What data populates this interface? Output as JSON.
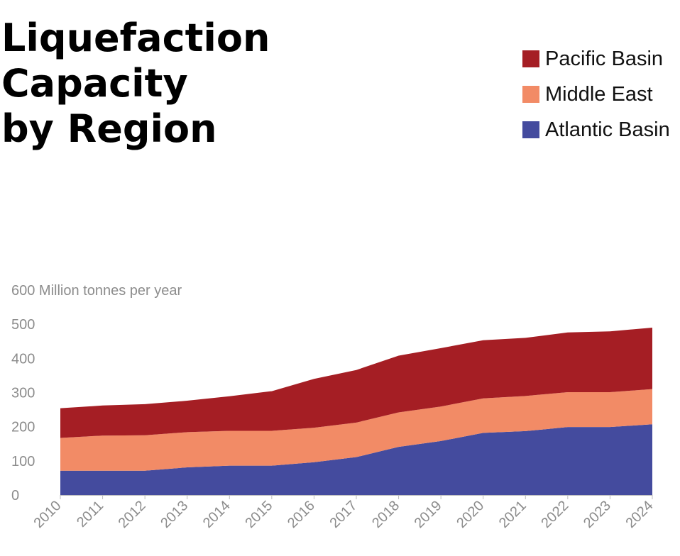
{
  "title_lines": [
    "Liquefaction",
    "Capacity",
    "by Region"
  ],
  "chart_data": {
    "type": "area",
    "stacked": true,
    "title": "Liquefaction Capacity by Region",
    "ylabel": "Million tonnes per year",
    "xlabel": "",
    "ylim": [
      0,
      600
    ],
    "yticks": [
      0,
      100,
      200,
      300,
      400,
      500,
      600
    ],
    "x": [
      "2010",
      "2011",
      "2012",
      "2013",
      "2014",
      "2015",
      "2016",
      "2017",
      "2018",
      "2019",
      "2020",
      "2021",
      "2022",
      "2023",
      "2024"
    ],
    "series": [
      {
        "name": "Atlantic Basin",
        "color": "#444b9e",
        "values": [
          71,
          71,
          71,
          81,
          86,
          86,
          96,
          111,
          141,
          158,
          182,
          187,
          199,
          199,
          207
        ]
      },
      {
        "name": "Middle East",
        "color": "#f28b66",
        "values": [
          96,
          103,
          104,
          103,
          102,
          102,
          101,
          101,
          101,
          101,
          101,
          103,
          102,
          102,
          103
        ]
      },
      {
        "name": "Pacific Basin",
        "color": "#a51e24",
        "values": [
          87,
          88,
          91,
          92,
          101,
          116,
          143,
          154,
          166,
          171,
          170,
          170,
          175,
          178,
          180
        ]
      }
    ],
    "legend_order": [
      "Pacific Basin",
      "Middle East",
      "Atlantic Basin"
    ],
    "legend_position": "top-right",
    "grid": false
  }
}
